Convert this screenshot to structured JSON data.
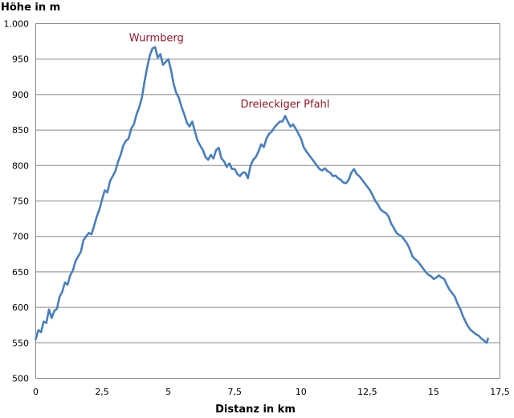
{
  "chart_data": {
    "type": "line",
    "xlabel": "Distanz in km",
    "ylabel": "Höhe in m",
    "xlim": [
      0,
      17.5
    ],
    "ylim": [
      500,
      1000
    ],
    "x_ticks": [
      0,
      2.5,
      5,
      7.5,
      10,
      12.5,
      15,
      17.5
    ],
    "x_tick_labels": [
      "0",
      "2,5",
      "5",
      "7,5",
      "10",
      "12,5",
      "15",
      "17,5"
    ],
    "y_ticks": [
      500,
      550,
      600,
      650,
      700,
      750,
      800,
      850,
      900,
      950,
      1000
    ],
    "y_tick_labels": [
      "500",
      "550",
      "600",
      "650",
      "700",
      "750",
      "800",
      "850",
      "900",
      "950",
      "1.000"
    ],
    "grid": "horizontal",
    "legend": "none",
    "line_color": "#4a7ebb",
    "annotations": [
      {
        "text": "Wurmberg",
        "x": 4.55,
        "y": 975
      },
      {
        "text": "Dreieckiger Pfahl",
        "x": 9.4,
        "y": 882
      }
    ],
    "series": [
      {
        "x": [
          0,
          0.1,
          0.2,
          0.3,
          0.4,
          0.5,
          0.6,
          0.7,
          0.8,
          0.9,
          1.0,
          1.1,
          1.2,
          1.3,
          1.4,
          1.5,
          1.6,
          1.7,
          1.8,
          1.9,
          2.0,
          2.1,
          2.2,
          2.3,
          2.4,
          2.5,
          2.6,
          2.7,
          2.8,
          2.9,
          3.0,
          3.1,
          3.2,
          3.3,
          3.4,
          3.5,
          3.6,
          3.7,
          3.8,
          3.9,
          4.0,
          4.1,
          4.2,
          4.3,
          4.4,
          4.5,
          4.6,
          4.7,
          4.8,
          4.9,
          5.0,
          5.1,
          5.2,
          5.3,
          5.4,
          5.5,
          5.6,
          5.7,
          5.8,
          5.9,
          6.0,
          6.1,
          6.2,
          6.3,
          6.4,
          6.5,
          6.6,
          6.7,
          6.8,
          6.9,
          7.0,
          7.1,
          7.2,
          7.3,
          7.4,
          7.5,
          7.6,
          7.7,
          7.8,
          7.9,
          8.0,
          8.1,
          8.2,
          8.3,
          8.4,
          8.5,
          8.6,
          8.7,
          8.8,
          8.9,
          9.0,
          9.1,
          9.2,
          9.3,
          9.4,
          9.5,
          9.6,
          9.7,
          9.8,
          9.9,
          10.0,
          10.1,
          10.2,
          10.3,
          10.4,
          10.5,
          10.6,
          10.7,
          10.8,
          10.9,
          11.0,
          11.1,
          11.2,
          11.3,
          11.4,
          11.5,
          11.6,
          11.7,
          11.8,
          11.9,
          12.0,
          12.1,
          12.2,
          12.3,
          12.4,
          12.5,
          12.6,
          12.7,
          12.8,
          12.9,
          13.0,
          13.1,
          13.2,
          13.3,
          13.4,
          13.5,
          13.6,
          13.7,
          13.8,
          13.9,
          14.0,
          14.1,
          14.2,
          14.3,
          14.4,
          14.5,
          14.6,
          14.7,
          14.8,
          14.9,
          15.0,
          15.1,
          15.2,
          15.3,
          15.4,
          15.5,
          15.6,
          15.7,
          15.8,
          15.9,
          16.0,
          16.1,
          16.2,
          16.3,
          16.4,
          16.5,
          16.6,
          16.7,
          16.8,
          16.9,
          17.0,
          17.05
        ],
        "y": [
          555,
          568,
          565,
          580,
          578,
          597,
          585,
          595,
          598,
          615,
          622,
          635,
          632,
          645,
          652,
          665,
          672,
          678,
          695,
          700,
          705,
          703,
          715,
          728,
          738,
          752,
          765,
          762,
          778,
          785,
          792,
          805,
          815,
          828,
          835,
          838,
          852,
          858,
          872,
          882,
          895,
          918,
          938,
          955,
          965,
          967,
          952,
          957,
          942,
          946,
          950,
          935,
          915,
          902,
          895,
          882,
          872,
          860,
          855,
          862,
          848,
          835,
          828,
          822,
          812,
          808,
          815,
          810,
          822,
          825,
          810,
          806,
          798,
          803,
          795,
          795,
          788,
          785,
          790,
          790,
          782,
          800,
          808,
          812,
          820,
          830,
          826,
          838,
          845,
          848,
          854,
          858,
          862,
          862,
          870,
          862,
          855,
          858,
          852,
          845,
          838,
          826,
          820,
          815,
          810,
          805,
          800,
          795,
          793,
          796,
          792,
          790,
          785,
          786,
          782,
          780,
          776,
          775,
          780,
          790,
          795,
          788,
          785,
          780,
          775,
          770,
          765,
          758,
          750,
          745,
          738,
          735,
          733,
          728,
          718,
          712,
          705,
          702,
          700,
          695,
          690,
          682,
          672,
          668,
          665,
          660,
          655,
          650,
          646,
          644,
          640,
          642,
          645,
          642,
          640,
          632,
          625,
          620,
          615,
          605,
          598,
          588,
          580,
          573,
          568,
          565,
          562,
          560,
          556,
          553,
          550,
          556
        ]
      }
    ]
  }
}
